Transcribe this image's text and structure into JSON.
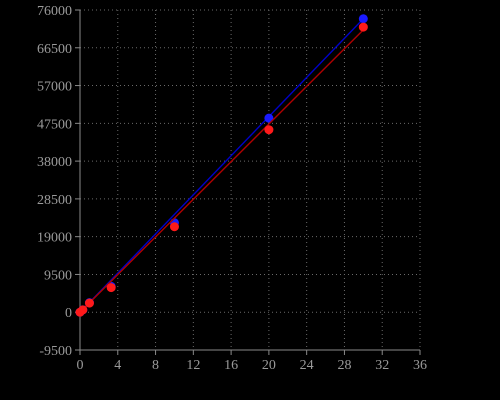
{
  "chart_data": {
    "type": "scatter",
    "title": "",
    "xlabel": "",
    "ylabel": "",
    "xlim": [
      0,
      36
    ],
    "ylim": [
      -9500,
      76000
    ],
    "x_ticks": [
      "0",
      "4",
      "8",
      "12",
      "16",
      "20",
      "24",
      "28",
      "32",
      "36"
    ],
    "y_ticks": [
      "-9500",
      "0",
      "9500",
      "19000",
      "28500",
      "38000",
      "47500",
      "57000",
      "66500",
      "76000"
    ],
    "grid": true,
    "legend": "none",
    "series": [
      {
        "color": "#1a1aff",
        "line_color": "#0000c8",
        "points": [
          {
            "x": 0,
            "y": 0
          },
          {
            "x": 0.3,
            "y": 600
          },
          {
            "x": 1,
            "y": 2400
          },
          {
            "x": 3.3,
            "y": 6500
          },
          {
            "x": 10,
            "y": 22500
          },
          {
            "x": 20,
            "y": 48800
          },
          {
            "x": 30,
            "y": 73800
          }
        ],
        "fit": {
          "x": [
            0,
            30
          ],
          "y": [
            0,
            73800
          ]
        }
      },
      {
        "color": "#ff1a1a",
        "line_color": "#b00000",
        "points": [
          {
            "x": 0,
            "y": 0
          },
          {
            "x": 0.3,
            "y": 600
          },
          {
            "x": 1,
            "y": 2300
          },
          {
            "x": 3.3,
            "y": 6200
          },
          {
            "x": 10,
            "y": 21500
          },
          {
            "x": 20,
            "y": 45900
          },
          {
            "x": 30,
            "y": 71700
          }
        ],
        "fit": {
          "x": [
            0,
            30
          ],
          "y": [
            0,
            71000
          ]
        }
      }
    ]
  }
}
